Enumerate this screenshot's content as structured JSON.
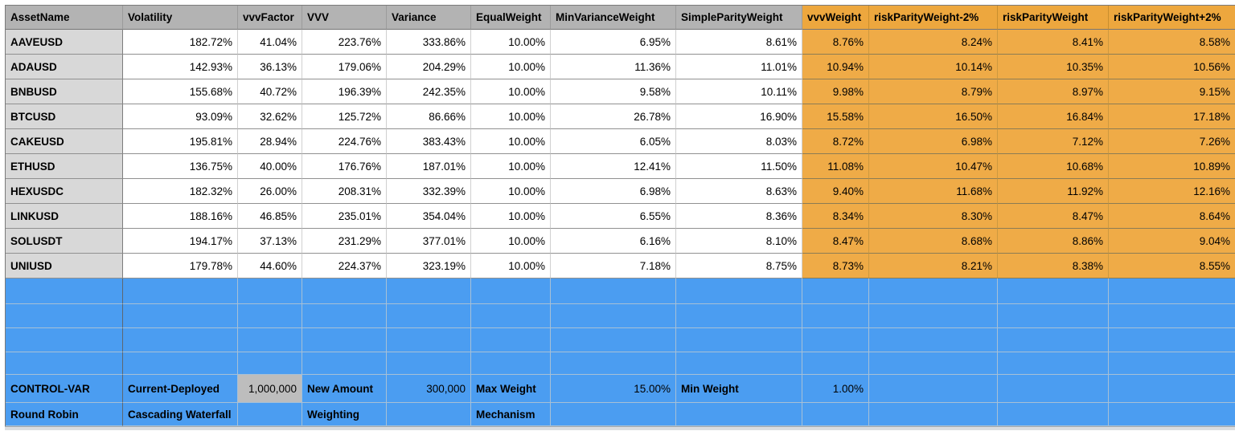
{
  "sheet": {
    "columns": [
      "AssetName",
      "Volatility",
      "vvvFactor",
      "VVV",
      "Variance",
      "EqualWeight",
      "MinVarianceWeight",
      "SimpleParityWeight",
      "vvvWeight",
      "riskParityWeight-2%",
      "riskParityWeight",
      "riskParityWeight+2%"
    ],
    "rows": [
      {
        "asset": "AAVEUSD",
        "values": [
          "182.72%",
          "41.04%",
          "223.76%",
          "333.86%",
          "10.00%",
          "6.95%",
          "8.61%",
          "8.76%",
          "8.24%",
          "8.41%",
          "8.58%"
        ]
      },
      {
        "asset": "ADAUSD",
        "values": [
          "142.93%",
          "36.13%",
          "179.06%",
          "204.29%",
          "10.00%",
          "11.36%",
          "11.01%",
          "10.94%",
          "10.14%",
          "10.35%",
          "10.56%"
        ]
      },
      {
        "asset": "BNBUSD",
        "values": [
          "155.68%",
          "40.72%",
          "196.39%",
          "242.35%",
          "10.00%",
          "9.58%",
          "10.11%",
          "9.98%",
          "8.79%",
          "8.97%",
          "9.15%"
        ]
      },
      {
        "asset": "BTCUSD",
        "values": [
          "93.09%",
          "32.62%",
          "125.72%",
          "86.66%",
          "10.00%",
          "26.78%",
          "16.90%",
          "15.58%",
          "16.50%",
          "16.84%",
          "17.18%"
        ]
      },
      {
        "asset": "CAKEUSD",
        "values": [
          "195.81%",
          "28.94%",
          "224.76%",
          "383.43%",
          "10.00%",
          "6.05%",
          "8.03%",
          "8.72%",
          "6.98%",
          "7.12%",
          "7.26%"
        ]
      },
      {
        "asset": "ETHUSD",
        "values": [
          "136.75%",
          "40.00%",
          "176.76%",
          "187.01%",
          "10.00%",
          "12.41%",
          "11.50%",
          "11.08%",
          "10.47%",
          "10.68%",
          "10.89%"
        ]
      },
      {
        "asset": "HEXUSDC",
        "values": [
          "182.32%",
          "26.00%",
          "208.31%",
          "332.39%",
          "10.00%",
          "6.98%",
          "8.63%",
          "9.40%",
          "11.68%",
          "11.92%",
          "12.16%"
        ]
      },
      {
        "asset": "LINKUSD",
        "values": [
          "188.16%",
          "46.85%",
          "235.01%",
          "354.04%",
          "10.00%",
          "6.55%",
          "8.36%",
          "8.34%",
          "8.30%",
          "8.47%",
          "8.64%"
        ]
      },
      {
        "asset": "SOLUSDT",
        "values": [
          "194.17%",
          "37.13%",
          "231.29%",
          "377.01%",
          "10.00%",
          "6.16%",
          "8.10%",
          "8.47%",
          "8.68%",
          "8.86%",
          "9.04%"
        ]
      },
      {
        "asset": "UNIUSD",
        "values": [
          "179.78%",
          "44.60%",
          "224.37%",
          "323.19%",
          "10.00%",
          "7.18%",
          "8.75%",
          "8.73%",
          "8.21%",
          "8.38%",
          "8.55%"
        ]
      }
    ],
    "blank_row_count": 4,
    "control_row": {
      "cells": [
        {
          "text": "CONTROL-VAR",
          "kind": "label"
        },
        {
          "text": "Current-Deployed",
          "kind": "label"
        },
        {
          "text": "1,000,000",
          "kind": "value",
          "variant": "gray"
        },
        {
          "text": "New Amount",
          "kind": "label"
        },
        {
          "text": "300,000",
          "kind": "value"
        },
        {
          "text": "Max Weight",
          "kind": "label"
        },
        {
          "text": "15.00%",
          "kind": "value",
          "has_note": true
        },
        {
          "text": "Min Weight",
          "kind": "label"
        },
        {
          "text": "1.00%",
          "kind": "value"
        },
        {
          "text": "",
          "kind": "empty"
        },
        {
          "text": "",
          "kind": "empty"
        },
        {
          "text": "",
          "kind": "empty"
        }
      ]
    },
    "mechanism_row": {
      "cells": [
        {
          "text": "Round Robin",
          "kind": "label"
        },
        {
          "text": "Cascading Waterfall",
          "kind": "label"
        },
        {
          "text": "",
          "kind": "empty"
        },
        {
          "text": "Weighting",
          "kind": "label"
        },
        {
          "text": "",
          "kind": "empty"
        },
        {
          "text": "Mechanism",
          "kind": "label"
        },
        {
          "text": "",
          "kind": "empty"
        },
        {
          "text": "",
          "kind": "empty"
        },
        {
          "text": "",
          "kind": "empty"
        },
        {
          "text": "",
          "kind": "empty"
        },
        {
          "text": "",
          "kind": "empty"
        },
        {
          "text": "",
          "kind": "empty"
        }
      ]
    }
  },
  "colors": {
    "header_gray": "#b3b3b3",
    "asset_column_gray": "#d8d8d8",
    "orange_header": "#eda73e",
    "orange_cell": "#efab47",
    "blue_fill": "#4b9df1",
    "input_cell_gray": "#bdbdbd",
    "comment_note_yellow": "#f8f1b0"
  }
}
